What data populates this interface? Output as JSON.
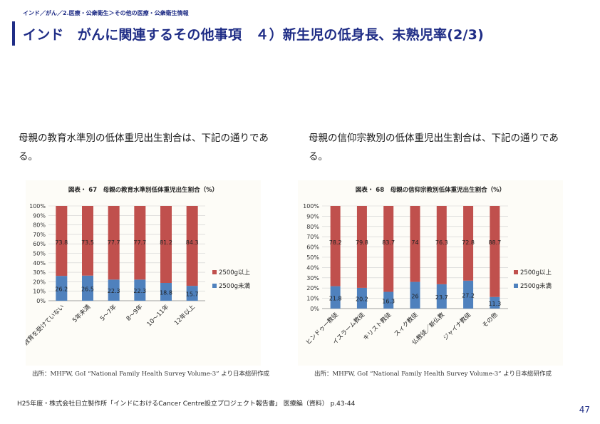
{
  "breadcrumb": "インド／がん／2.医療・公衆衛生＞その他の医療・公衆衛生情報",
  "title": "インド　がんに関連するその他事項　４）新生児の低身長、未熟児率(2/3)",
  "left_text": "母親の教育水準別の低体重児出生割合は、下記の通りである。",
  "right_text": "母親の信仰宗教別の低体重児出生割合は、下記の通りである。",
  "source_left": "出所：MHFW, GoI “National Family Health Survey Volume-3” より日本総研作成",
  "source_right": "出所：MHFW, GoI “National Family Health Survey Volume-3” より日本総研作成",
  "footer": "H25年度・株式会社日立製作所「インドにおけるCancer Centre設立プロジェクト報告書」 医療編（資料） p.43-44",
  "page_number": "47",
  "colors": {
    "accent": "#1f2d86",
    "under2500": "#4f81bd",
    "over2500": "#c0504d"
  },
  "chart_data": [
    {
      "type": "bar",
      "stacked": true,
      "title": "図表・ 67　母親の教育水準別低体重児出生割合（%）",
      "categories": [
        "教育を受けていない",
        "5年未満",
        "5～7年",
        "8～9年",
        "10～11年",
        "12年以上"
      ],
      "series": [
        {
          "name": "2500g未満",
          "values": [
            26.2,
            26.5,
            22.3,
            22.3,
            18.8,
            15.7
          ]
        },
        {
          "name": "2500g以上",
          "values": [
            73.8,
            73.5,
            77.7,
            77.7,
            81.2,
            84.3
          ]
        }
      ],
      "yticks": [
        "0%",
        "10%",
        "20%",
        "30%",
        "40%",
        "50%",
        "60%",
        "70%",
        "80%",
        "90%",
        "100%"
      ],
      "ylim": [
        0,
        100
      ],
      "legend": "right"
    },
    {
      "type": "bar",
      "stacked": true,
      "title": "図表・ 68　母親の信仰宗教別低体重児出生割合（%）",
      "categories": [
        "ヒンドゥー教徒",
        "イスラーム教徒",
        "キリスト教徒",
        "スィク教徒",
        "仏教徒／新仏教",
        "ジャイナ教徒",
        "その他"
      ],
      "series": [
        {
          "name": "2500g未満",
          "values": [
            21.8,
            20.2,
            16.3,
            26,
            23.7,
            27.2,
            11.3
          ]
        },
        {
          "name": "2500g以上",
          "values": [
            78.2,
            79.8,
            83.7,
            74,
            76.3,
            72.8,
            88.7
          ]
        }
      ],
      "yticks": [
        "0%",
        "10%",
        "20%",
        "30%",
        "40%",
        "50%",
        "60%",
        "70%",
        "80%",
        "90%",
        "100%"
      ],
      "ylim": [
        0,
        100
      ],
      "legend": "right"
    }
  ]
}
